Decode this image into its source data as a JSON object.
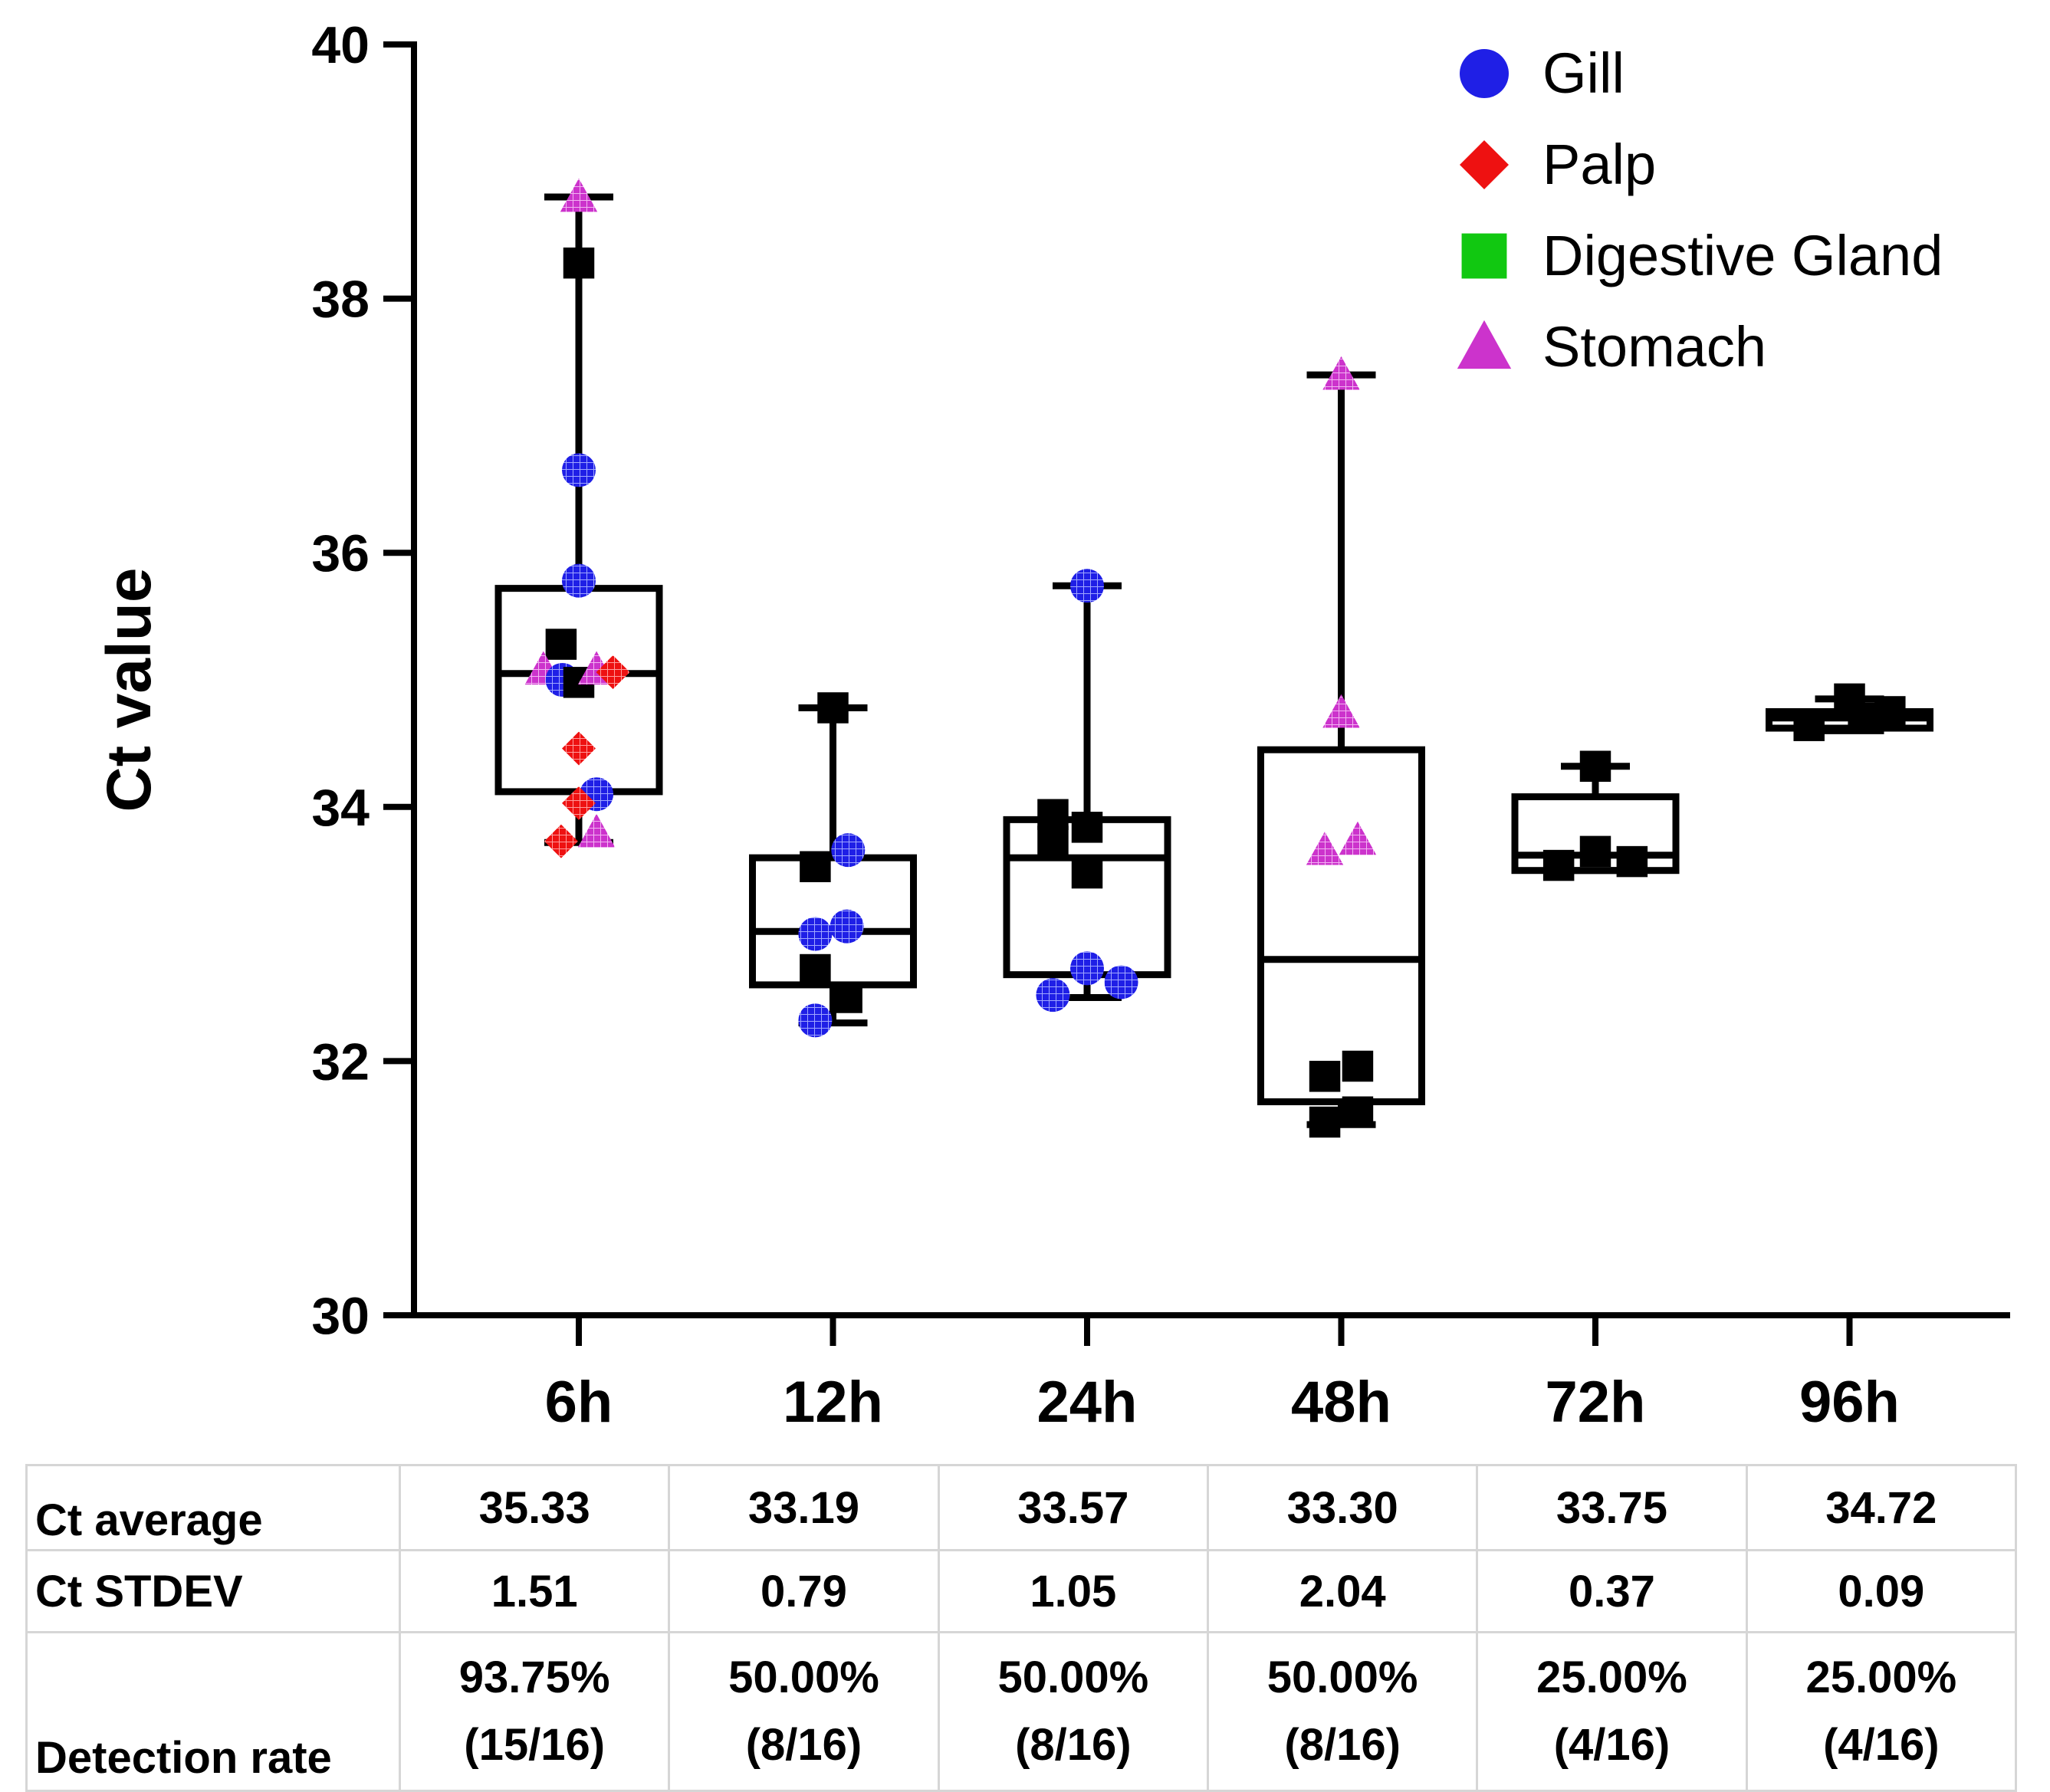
{
  "chart_data": {
    "type": "box",
    "ylabel": "Ct value",
    "ylim": [
      30,
      40
    ],
    "yticks": [
      "30",
      "32",
      "34",
      "36",
      "38",
      "40"
    ],
    "categories": [
      "6h",
      "12h",
      "24h",
      "48h",
      "72h",
      "96h"
    ],
    "legend": {
      "position": "top-right",
      "entries": [
        {
          "name": "Gill",
          "shape": "circle",
          "color": "#1f1fe6"
        },
        {
          "name": "Palp",
          "shape": "diamond",
          "color": "#ee1111"
        },
        {
          "name": "Digestive Gland",
          "shape": "square",
          "color": "#11c811"
        },
        {
          "name": "Stomach",
          "shape": "triangle",
          "color": "#cc33cc"
        }
      ]
    },
    "boxes": [
      {
        "category": "6h",
        "min": 33.72,
        "q1": 34.12,
        "median": 35.05,
        "q3": 35.72,
        "max": 38.8
      },
      {
        "category": "12h",
        "min": 32.3,
        "q1": 32.6,
        "median": 33.02,
        "q3": 33.6,
        "max": 34.78
      },
      {
        "category": "24h",
        "min": 32.5,
        "q1": 32.68,
        "median": 33.6,
        "q3": 33.9,
        "max": 35.74
      },
      {
        "category": "48h",
        "min": 31.5,
        "q1": 31.68,
        "median": 32.8,
        "q3": 34.45,
        "max": 37.4
      },
      {
        "category": "72h",
        "min": 33.5,
        "q1": 33.5,
        "median": 33.62,
        "q3": 34.08,
        "max": 34.32
      },
      {
        "category": "96h",
        "min": 34.6,
        "q1": 34.62,
        "median": 34.7,
        "q3": 34.75,
        "max": 34.85
      }
    ],
    "points": [
      {
        "category": "6h",
        "series": "Stomach",
        "offset": 0.0,
        "y": 38.8
      },
      {
        "category": "6h",
        "series": "Digestive Gland",
        "offset": 0.0,
        "y": 38.28
      },
      {
        "category": "6h",
        "series": "Gill",
        "offset": 0.0,
        "y": 36.65
      },
      {
        "category": "6h",
        "series": "Gill",
        "offset": 0.0,
        "y": 35.78
      },
      {
        "category": "6h",
        "series": "Digestive Gland",
        "offset": -0.14,
        "y": 35.28
      },
      {
        "category": "6h",
        "series": "Stomach",
        "offset": -0.28,
        "y": 35.08
      },
      {
        "category": "6h",
        "series": "Gill",
        "offset": -0.13,
        "y": 35.0
      },
      {
        "category": "6h",
        "series": "Digestive Gland",
        "offset": 0.0,
        "y": 34.98
      },
      {
        "category": "6h",
        "series": "Stomach",
        "offset": 0.14,
        "y": 35.08
      },
      {
        "category": "6h",
        "series": "Palp",
        "offset": 0.27,
        "y": 35.06
      },
      {
        "category": "6h",
        "series": "Palp",
        "offset": 0.0,
        "y": 34.46
      },
      {
        "category": "6h",
        "series": "Gill",
        "offset": 0.14,
        "y": 34.1
      },
      {
        "category": "6h",
        "series": "Palp",
        "offset": 0.0,
        "y": 34.03
      },
      {
        "category": "6h",
        "series": "Palp",
        "offset": -0.14,
        "y": 33.73
      },
      {
        "category": "6h",
        "series": "Stomach",
        "offset": 0.14,
        "y": 33.8
      },
      {
        "category": "12h",
        "series": "Digestive Gland",
        "offset": 0.0,
        "y": 34.78
      },
      {
        "category": "12h",
        "series": "Gill",
        "offset": 0.12,
        "y": 33.66
      },
      {
        "category": "12h",
        "series": "Digestive Gland",
        "offset": -0.14,
        "y": 33.53
      },
      {
        "category": "12h",
        "series": "Gill",
        "offset": 0.11,
        "y": 33.06
      },
      {
        "category": "12h",
        "series": "Gill",
        "offset": -0.14,
        "y": 33.0
      },
      {
        "category": "12h",
        "series": "Digestive Gland",
        "offset": -0.14,
        "y": 32.72
      },
      {
        "category": "12h",
        "series": "Digestive Gland",
        "offset": 0.11,
        "y": 32.5
      },
      {
        "category": "12h",
        "series": "Gill",
        "offset": -0.14,
        "y": 32.32
      },
      {
        "category": "24h",
        "series": "Gill",
        "offset": 0.0,
        "y": 35.74
      },
      {
        "category": "24h",
        "series": "Digestive Gland",
        "offset": -0.27,
        "y": 33.94
      },
      {
        "category": "24h",
        "series": "Digestive Gland",
        "offset": 0.0,
        "y": 33.84
      },
      {
        "category": "24h",
        "series": "Digestive Gland",
        "offset": -0.27,
        "y": 33.73
      },
      {
        "category": "24h",
        "series": "Digestive Gland",
        "offset": 0.0,
        "y": 33.48
      },
      {
        "category": "24h",
        "series": "Gill",
        "offset": 0.0,
        "y": 32.73
      },
      {
        "category": "24h",
        "series": "Gill",
        "offset": 0.27,
        "y": 32.62
      },
      {
        "category": "24h",
        "series": "Gill",
        "offset": -0.27,
        "y": 32.52
      },
      {
        "category": "48h",
        "series": "Stomach",
        "offset": 0.0,
        "y": 37.4
      },
      {
        "category": "48h",
        "series": "Stomach",
        "offset": 0.0,
        "y": 34.74
      },
      {
        "category": "48h",
        "series": "Stomach",
        "offset": 0.13,
        "y": 33.74
      },
      {
        "category": "48h",
        "series": "Stomach",
        "offset": -0.13,
        "y": 33.66
      },
      {
        "category": "48h",
        "series": "Digestive Gland",
        "offset": 0.13,
        "y": 31.96
      },
      {
        "category": "48h",
        "series": "Digestive Gland",
        "offset": -0.13,
        "y": 31.88
      },
      {
        "category": "48h",
        "series": "Digestive Gland",
        "offset": 0.13,
        "y": 31.6
      },
      {
        "category": "48h",
        "series": "Digestive Gland",
        "offset": -0.13,
        "y": 31.52
      },
      {
        "category": "72h",
        "series": "Digestive Gland",
        "offset": 0.0,
        "y": 34.32
      },
      {
        "category": "72h",
        "series": "Digestive Gland",
        "offset": 0.0,
        "y": 33.65
      },
      {
        "category": "72h",
        "series": "Digestive Gland",
        "offset": 0.29,
        "y": 33.57
      },
      {
        "category": "72h",
        "series": "Digestive Gland",
        "offset": -0.29,
        "y": 33.54
      },
      {
        "category": "96h",
        "series": "Digestive Gland",
        "offset": 0.0,
        "y": 34.85
      },
      {
        "category": "96h",
        "series": "Digestive Gland",
        "offset": 0.32,
        "y": 34.75
      },
      {
        "category": "96h",
        "series": "Digestive Gland",
        "offset": 0.11,
        "y": 34.7
      },
      {
        "category": "96h",
        "series": "Digestive Gland",
        "offset": -0.32,
        "y": 34.64
      }
    ]
  },
  "table": {
    "rows": [
      {
        "label": "Ct average",
        "values": [
          "35.33",
          "33.19",
          "33.57",
          "33.30",
          "33.75",
          "34.72"
        ]
      },
      {
        "label": "Ct STDEV",
        "values": [
          "1.51",
          "0.79",
          "1.05",
          "2.04",
          "0.37",
          "0.09"
        ]
      },
      {
        "label": "Detection rate",
        "values": [
          "93.75%",
          "50.00%",
          "50.00%",
          "50.00%",
          "25.00%",
          "25.00%"
        ],
        "counts": [
          "(15/16)",
          "(8/16)",
          "(8/16)",
          "(8/16)",
          "(4/16)",
          "(4/16)"
        ]
      }
    ]
  }
}
